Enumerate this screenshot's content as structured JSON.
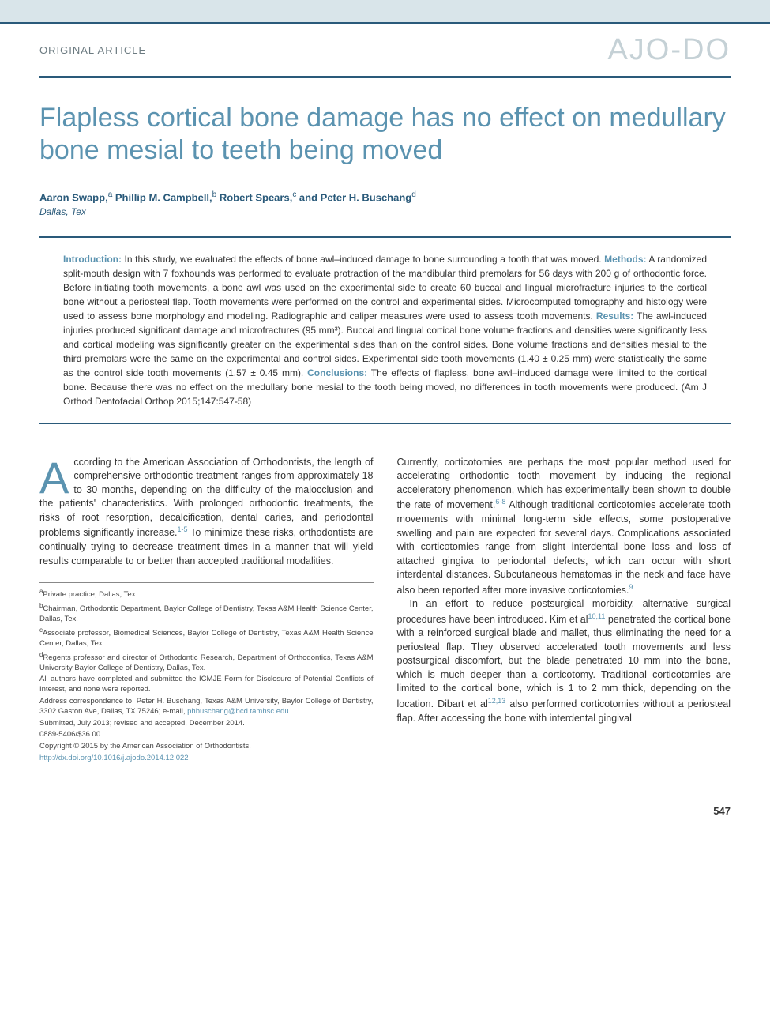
{
  "header": {
    "article_type": "ORIGINAL ARTICLE",
    "journal_logo": "AJO-DO"
  },
  "title": "Flapless cortical bone damage has no effect on medullary bone mesial to teeth being moved",
  "authors_html": "Aaron Swapp,<sup>a</sup> Phillip M. Campbell,<sup>b</sup> Robert Spears,<sup>c</sup> and Peter H. Buschang<sup>d</sup>",
  "location": "Dallas, Tex",
  "abstract": {
    "intro_label": "Introduction:",
    "intro": " In this study, we evaluated the effects of bone awl–induced damage to bone surrounding a tooth that was moved. ",
    "methods_label": "Methods:",
    "methods": " A randomized split-mouth design with 7 foxhounds was performed to evaluate protraction of the mandibular third premolars for 56 days with 200 g of orthodontic force. Before initiating tooth movements, a bone awl was used on the experimental side to create 60 buccal and lingual microfracture injuries to the cortical bone without a periosteal flap. Tooth movements were performed on the control and experimental sides. Microcomputed tomography and histology were used to assess bone morphology and modeling. Radiographic and caliper measures were used to assess tooth movements. ",
    "results_label": "Results:",
    "results": " The awl-induced injuries produced significant damage and microfractures (95 mm³). Buccal and lingual cortical bone volume fractions and densities were significantly less and cortical modeling was significantly greater on the experimental sides than on the control sides. Bone volume fractions and densities mesial to the third premolars were the same on the experimental and control sides. Experimental side tooth movements (1.40 ± 0.25 mm) were statistically the same as the control side tooth movements (1.57 ± 0.45 mm). ",
    "conclusions_label": "Conclusions:",
    "conclusions": " The effects of flapless, bone awl–induced damage were limited to the cortical bone. Because there was no effect on the medullary bone mesial to the tooth being moved, no differences in tooth movements were produced. (Am J Orthod Dentofacial Orthop 2015;147:547-58)"
  },
  "body": {
    "col1_p1_dropcap": "A",
    "col1_p1": "ccording to the American Association of Orthodontists, the length of comprehensive orthodontic treatment ranges from approximately 18 to 30 months, depending on the difficulty of the malocclusion and the patients' characteristics. With prolonged orthodontic treatments, the risks of root resorption, decalcification, dental caries, and periodontal problems significantly increase.",
    "col1_ref1": "1-5",
    "col1_p1_cont": " To minimize these risks, orthodontists are continually trying to decrease treatment times in a manner that will yield results comparable to or better than accepted traditional modalities.",
    "col2_p1": "Currently, corticotomies are perhaps the most popular method used for accelerating orthodontic tooth movement by inducing the regional acceleratory phenomenon, which has experimentally been shown to double the rate of movement.",
    "col2_ref1": "6-8",
    "col2_p1_cont": " Although traditional corticotomies accelerate tooth movements with minimal long-term side effects, some postoperative swelling and pain are expected for several days. Complications associated with corticotomies range from slight interdental bone loss and loss of attached gingiva to periodontal defects, which can occur with short interdental distances. Subcutaneous hematomas in the neck and face have also been reported after more invasive corticotomies.",
    "col2_ref2": "9",
    "col2_p2": "In an effort to reduce postsurgical morbidity, alternative surgical procedures have been introduced. Kim et al",
    "col2_ref3": "10,11",
    "col2_p2_cont": " penetrated the cortical bone with a reinforced surgical blade and mallet, thus eliminating the need for a periosteal flap. They observed accelerated tooth movements and less postsurgical discomfort, but the blade penetrated 10 mm into the bone, which is much deeper than a corticotomy. Traditional corticotomies are limited to the cortical bone, which is 1 to 2 mm thick, depending on the location. Dibart et al",
    "col2_ref4": "12,13",
    "col2_p2_end": " also performed corticotomies without a periosteal flap. After accessing the bone with interdental gingival"
  },
  "footnotes": {
    "a": "Private practice, Dallas, Tex.",
    "b": "Chairman, Orthodontic Department, Baylor College of Dentistry, Texas A&M Health Science Center, Dallas, Tex.",
    "c": "Associate professor, Biomedical Sciences, Baylor College of Dentistry, Texas A&M Health Science Center, Dallas, Tex.",
    "d": "Regents professor and director of Orthodontic Research, Department of Orthodontics, Texas A&M University Baylor College of Dentistry, Dallas, Tex.",
    "disclosure": "All authors have completed and submitted the ICMJE Form for Disclosure of Potential Conflicts of Interest, and none were reported.",
    "correspondence": "Address correspondence to: Peter H. Buschang, Texas A&M University, Baylor College of Dentistry, 3302 Gaston Ave, Dallas, TX 75246; e-mail, ",
    "email": "phbuschang@bcd.tamhsc.edu",
    "submitted": "Submitted, July 2013; revised and accepted, December 2014.",
    "issn": "0889-5406/$36.00",
    "copyright": "Copyright © 2015 by the American Association of Orthodontists.",
    "doi": "http://dx.doi.org/10.1016/j.ajodo.2014.12.022"
  },
  "page_number": "547",
  "colors": {
    "header_band": "#d9e5ea",
    "accent_bar": "#2a5a7a",
    "title_color": "#5b93b0",
    "logo_color": "#c5d1d6",
    "text": "#333333",
    "link": "#5b93b0"
  }
}
